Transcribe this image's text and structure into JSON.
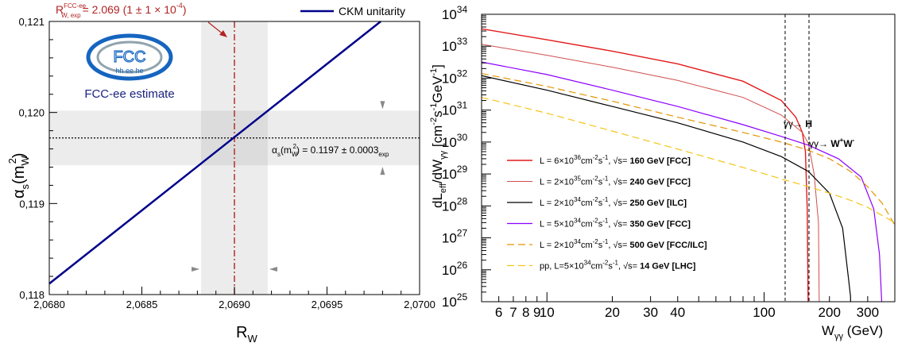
{
  "chart_data": [
    {
      "type": "line",
      "xlabel": "R",
      "xlabel_sub": "W",
      "ylabel": "α",
      "ylabel_sub": "s",
      "ylabel_args": "(m",
      "ylabel_args_sub": "W",
      "ylabel_args_sup": "2",
      "ylabel_close": ")",
      "xlim": [
        2.068,
        2.07
      ],
      "ylim": [
        0.118,
        0.121
      ],
      "x_ticks": [
        {
          "value": 2.068,
          "label": "2,0680"
        },
        {
          "value": 2.0685,
          "label": "2,0685"
        },
        {
          "value": 2.069,
          "label": "2,0690"
        },
        {
          "value": 2.0695,
          "label": "2,0695"
        },
        {
          "value": 2.07,
          "label": "2,0700"
        }
      ],
      "y_ticks": [
        {
          "value": 0.118,
          "label": "0,118"
        },
        {
          "value": 0.119,
          "label": "0,119"
        },
        {
          "value": 0.12,
          "label": "0,120"
        },
        {
          "value": 0.121,
          "label": "0,121"
        }
      ],
      "series": [
        {
          "name": "CKM unitarity",
          "color": "#00008b",
          "x": [
            2.068,
            2.06979
          ],
          "y": [
            0.11812,
            0.121
          ]
        }
      ],
      "vertical_band": {
        "center": 2.069,
        "low": 2.06882,
        "high": 2.06918,
        "color": "#b22222"
      },
      "horizontal_band": {
        "center": 0.11972,
        "low": 0.11942,
        "high": 0.12002
      },
      "annotations": {
        "r_label": "R",
        "r_label_sup": "FCC-ee",
        "r_label_sub": "W, exp",
        "r_label_value": "= 2.069 (1 ± 1 × 10",
        "r_label_exp": "-4",
        "r_label_close": ")",
        "alpha_label": "α",
        "alpha_label_sub": "s",
        "alpha_label_args": "(m",
        "alpha_label_args_sub": "W",
        "alpha_label_args_sup": "2",
        "alpha_label_value": ") = 0.1197 ±  0.0003",
        "alpha_label_exp_sub": "exp",
        "logo_text": "FCC",
        "logo_subtext": "hh ee he",
        "estimate_label": "FCC-ee estimate",
        "estimate_color": "#1a237e"
      },
      "legend_position": "top-right"
    },
    {
      "type": "line",
      "y_scale": "log",
      "x_scale": "log",
      "xlabel": "W",
      "xlabel_sub": "γγ",
      "xlabel_unit": " (GeV)",
      "ylabel": "dL",
      "ylabel_sub": "eff",
      "ylabel_mid": "/dW",
      "ylabel_mid_sub": "γγ",
      "ylabel_unit": " [cm",
      "ylabel_unit_sup1": "-2",
      "ylabel_unit_mid": "s",
      "ylabel_unit_sup2": "-1",
      "ylabel_unit_gev": "GeV",
      "ylabel_unit_sup3": "-1",
      "ylabel_unit_close": "]",
      "xlim": [
        5,
        400
      ],
      "ylim": [
        1e+25,
        1e+34
      ],
      "x_ticks": [
        {
          "value": 6,
          "label": "6"
        },
        {
          "value": 7,
          "label": "7"
        },
        {
          "value": 8,
          "label": "8"
        },
        {
          "value": 9,
          "label": "9"
        },
        {
          "value": 10,
          "label": "10"
        },
        {
          "value": 20,
          "label": "20"
        },
        {
          "value": 30,
          "label": "30"
        },
        {
          "value": 40,
          "label": "40"
        },
        {
          "value": 100,
          "label": "100"
        },
        {
          "value": 200,
          "label": "200"
        },
        {
          "value": 300,
          "label": "300"
        }
      ],
      "y_ticks": [
        {
          "value": 25,
          "base": "10",
          "exp": "25"
        },
        {
          "value": 26,
          "base": "10",
          "exp": "26"
        },
        {
          "value": 27,
          "base": "10",
          "exp": "27"
        },
        {
          "value": 28,
          "base": "10",
          "exp": "28"
        },
        {
          "value": 29,
          "base": "10",
          "exp": "29"
        },
        {
          "value": 30,
          "base": "10",
          "exp": "30"
        },
        {
          "value": 31,
          "base": "10",
          "exp": "31"
        },
        {
          "value": 32,
          "base": "10",
          "exp": "32"
        },
        {
          "value": 33,
          "base": "10",
          "exp": "33"
        },
        {
          "value": 34,
          "base": "10",
          "exp": "34"
        }
      ],
      "series": [
        {
          "lum_mant": "6",
          "lum_exp": "36",
          "sqrt_s": "160 GeV [FCC]",
          "color": "#e31a1c",
          "dash": "",
          "width": 1.4,
          "x": [
            5,
            10,
            20,
            40,
            80,
            120,
            140,
            150,
            155,
            158,
            159,
            160
          ],
          "y": [
            3.5e+33,
            1.6e+33,
            7e+32,
            2.8e+32,
            8e+31,
            2e+31,
            6e+30,
            2e+30,
            5e+29,
            8e+27,
            1e+26,
            1e+24
          ]
        },
        {
          "lum_mant": "2",
          "lum_exp": "35",
          "sqrt_s": "240 GeV [FCC]",
          "color": "#cf4f4f",
          "dash": "",
          "width": 1.0,
          "x": [
            5,
            10,
            20,
            40,
            80,
            120,
            150,
            160,
            170,
            178,
            180
          ],
          "y": [
            1.15e+33,
            5.2e+32,
            2.2e+32,
            8.5e+31,
            2.5e+31,
            7e+30,
            2e+30,
            9e+29,
            1e+29,
            3e+27,
            1e+24
          ]
        },
        {
          "lum_mant": "2",
          "lum_exp": "34",
          "sqrt_s": "250 GeV [ILC]",
          "color": "#000000",
          "dash": "",
          "width": 1.2,
          "x": [
            5,
            10,
            20,
            40,
            80,
            120,
            160,
            200,
            230,
            245,
            250,
            252
          ],
          "y": [
            1.2e+32,
            4.2e+31,
            1.3e+31,
            4e+30,
            1e+30,
            3.5e+29,
            1.2e+29,
            2.5e+28,
            2e+27,
            5e+25,
            1.5e+25,
            1e+24
          ]
        },
        {
          "lum_mant": "5",
          "lum_exp": "34",
          "sqrt_s": "350 GeV [FCC]",
          "color": "#8b00ff",
          "dash": "",
          "width": 1.2,
          "x": [
            5,
            10,
            20,
            40,
            80,
            120,
            160,
            220,
            280,
            320,
            340,
            348,
            350
          ],
          "y": [
            3.2e+32,
            1.3e+32,
            4.2e+31,
            1.3e+31,
            3.5e+30,
            1.5e+30,
            8e+29,
            3e+29,
            8e+28,
            8e+27,
            3e+26,
            1e+25,
            1e+24
          ]
        },
        {
          "lum_mant": "2",
          "lum_exp": "34",
          "sqrt_s": "500 GeV [FCC/ILC]",
          "color": "#e69500",
          "dash": "9,5",
          "width": 1.2,
          "x": [
            5,
            10,
            20,
            40,
            80,
            120,
            160,
            200,
            250,
            300,
            350,
            400
          ],
          "y": [
            1.4e+32,
            5.5e+31,
            1.9e+31,
            6e+30,
            2e+30,
            1e+30,
            5.5e+29,
            3e+29,
            1.2e+29,
            4e+28,
            1.2e+28,
            2.5e+27
          ]
        },
        {
          "label_prefix": "pp, L=",
          "lum_mant": "5",
          "lum_exp": "34",
          "sqrt_s": "14 GeV [LHC]",
          "color": "#f5c518",
          "dash": "9,5",
          "width": 1.2,
          "x": [
            5,
            10,
            20,
            40,
            80,
            120,
            160,
            200,
            250,
            300,
            350,
            400
          ],
          "y": [
            2.5e+31,
            8e+30,
            2.2e+30,
            6e+29,
            1.6e+29,
            7e+28,
            4e+28,
            2.5e+28,
            1.5e+28,
            9e+27,
            5e+27,
            3e+27
          ]
        }
      ],
      "vlines": [
        {
          "x": 125,
          "label": "γγ→ H",
          "label_plain": "γγ→ ",
          "label_bold": "H"
        },
        {
          "x": 161,
          "label_plain": "γγ→ ",
          "label_bold": "W",
          "label_sup1": "+",
          "label_bold2": "W",
          "label_sup2": "-"
        }
      ],
      "legend_position": "bottom-left"
    }
  ]
}
